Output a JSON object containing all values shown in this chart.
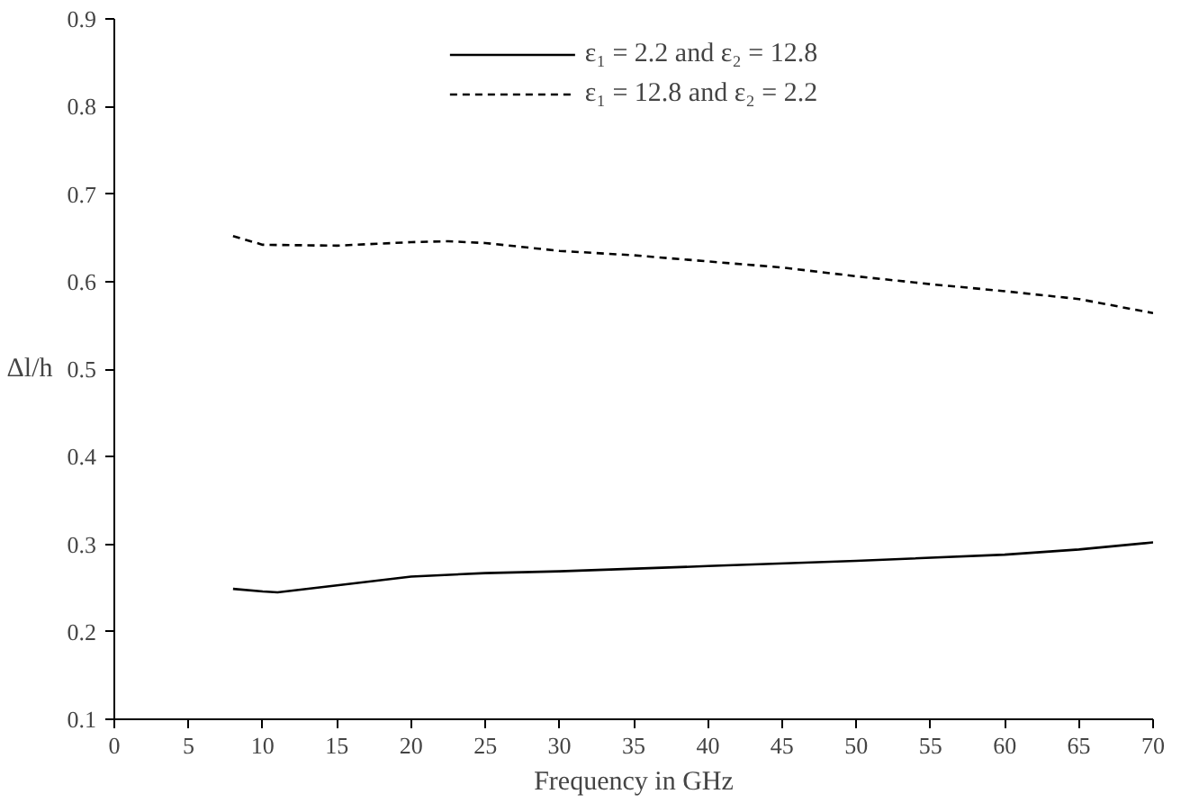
{
  "chart_data": {
    "type": "line",
    "xlabel": "Frequency in GHz",
    "ylabel": "Δl/h",
    "xlim": [
      0,
      70
    ],
    "xticks": [
      0,
      5,
      10,
      15,
      20,
      25,
      30,
      35,
      40,
      45,
      50,
      55,
      60,
      65,
      70
    ],
    "ylim": [
      0.1,
      0.9
    ],
    "yticks": [
      0.1,
      0.2,
      0.3,
      0.4,
      0.5,
      0.6,
      0.7,
      0.8,
      0.9
    ],
    "grid": false,
    "legend": "top",
    "marker": "none",
    "series": [
      {
        "name": "ε₁ = 2.2 and ε₂ = 12.8",
        "color": "#000000",
        "line_style": "solid",
        "x": [
          8,
          10,
          11,
          15,
          20,
          25,
          30,
          40,
          50,
          60,
          65,
          70
        ],
        "values": [
          0.249,
          0.246,
          0.245,
          0.253,
          0.263,
          0.267,
          0.269,
          0.275,
          0.281,
          0.288,
          0.294,
          0.302
        ]
      },
      {
        "name": "ε₁ = 12.8 and ε₂ = 2.2",
        "color": "#000000",
        "line_style": "dashed",
        "x": [
          8,
          10,
          15,
          20,
          22.5,
          25,
          30,
          35,
          40,
          45,
          50,
          55,
          60,
          65,
          70
        ],
        "values": [
          0.652,
          0.642,
          0.641,
          0.645,
          0.646,
          0.644,
          0.635,
          0.63,
          0.623,
          0.616,
          0.606,
          0.597,
          0.589,
          0.58,
          0.564
        ]
      }
    ]
  }
}
